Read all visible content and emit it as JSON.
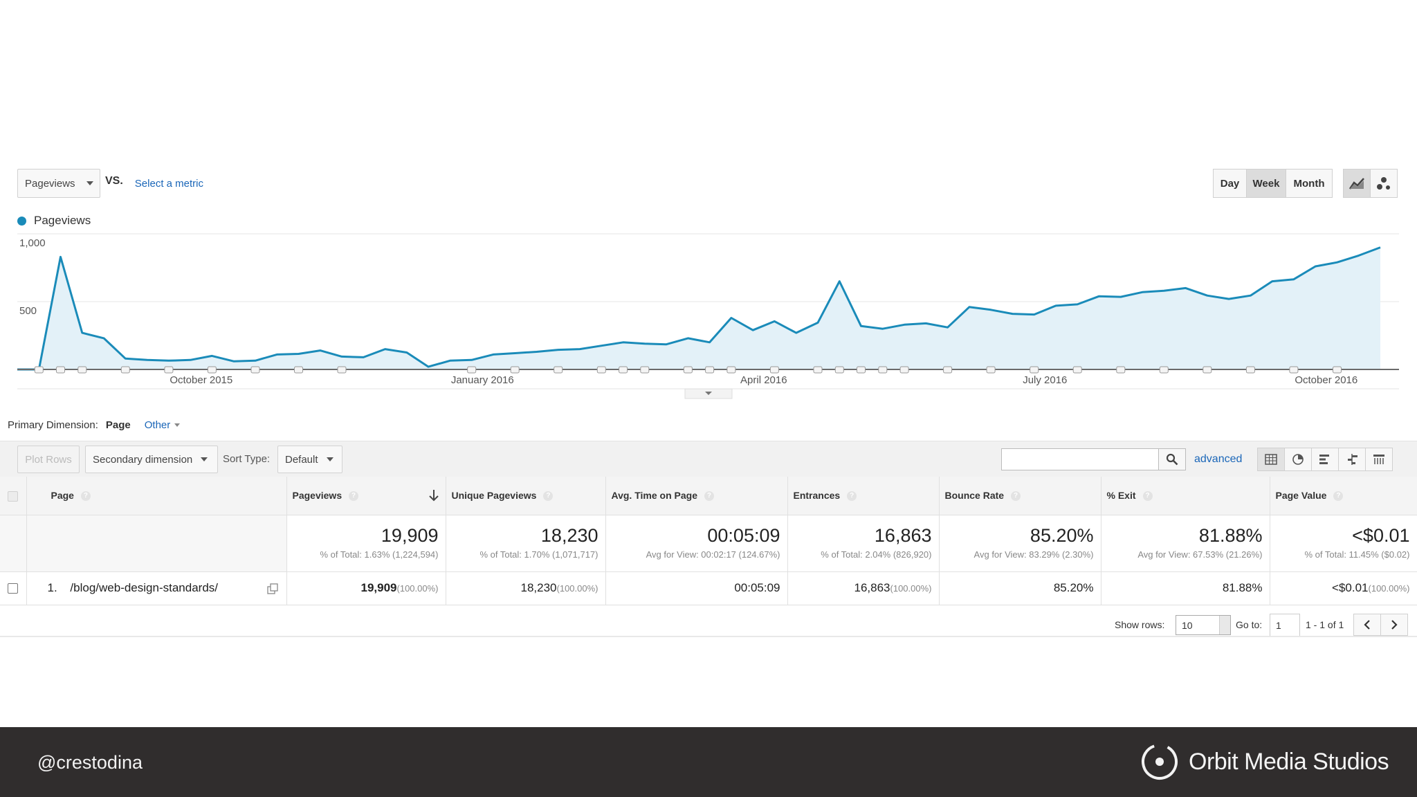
{
  "controls": {
    "metric": "Pageviews",
    "vs": "VS.",
    "select_metric": "Select a metric",
    "ranges": [
      "Day",
      "Week",
      "Month"
    ],
    "active_range": "Week"
  },
  "legend": {
    "label": "Pageviews",
    "color": "#1a8bb9"
  },
  "chart_data": {
    "type": "area",
    "title": "",
    "series": [
      {
        "name": "Pageviews",
        "values": [
          0,
          0,
          830,
          270,
          230,
          80,
          70,
          65,
          70,
          100,
          60,
          65,
          110,
          115,
          140,
          95,
          90,
          150,
          125,
          20,
          65,
          70,
          110,
          120,
          130,
          145,
          150,
          175,
          200,
          190,
          185,
          230,
          200,
          380,
          290,
          355,
          270,
          345,
          650,
          320,
          300,
          330,
          340,
          310,
          460,
          440,
          410,
          405,
          470,
          480,
          540,
          535,
          570,
          580,
          600,
          545,
          520,
          545,
          650,
          665,
          760,
          790,
          840,
          900
        ]
      }
    ],
    "yticks": [
      "1,000",
      "500"
    ],
    "ylim": [
      0,
      1000
    ],
    "xtick_labels": [
      "October 2015",
      "January 2016",
      "April 2016",
      "July 2016",
      "October 2016"
    ],
    "xtick_index": [
      8.5,
      21.5,
      34.5,
      47.5,
      60.5
    ]
  },
  "primary_dimension": {
    "label": "Primary Dimension:",
    "selected": "Page",
    "other": "Other"
  },
  "toolbar": {
    "plot_rows": "Plot Rows",
    "secondary_dimension": "Secondary dimension",
    "sort_type_label": "Sort Type:",
    "sort_type": "Default",
    "search_value": "",
    "advanced": "advanced"
  },
  "table": {
    "headers": [
      "Page",
      "Pageviews",
      "Unique Pageviews",
      "Avg. Time on Page",
      "Entrances",
      "Bounce Rate",
      "% Exit",
      "Page Value"
    ],
    "totals": [
      {
        "main": "19,909",
        "sub": "% of Total: 1.63% (1,224,594)"
      },
      {
        "main": "18,230",
        "sub": "% of Total: 1.70% (1,071,717)"
      },
      {
        "main": "00:05:09",
        "sub": "Avg for View: 00:02:17 (124.67%)"
      },
      {
        "main": "16,863",
        "sub": "% of Total: 2.04% (826,920)"
      },
      {
        "main": "85.20%",
        "sub": "Avg for View: 83.29% (2.30%)"
      },
      {
        "main": "81.88%",
        "sub": "Avg for View: 67.53% (21.26%)"
      },
      {
        "main": "<$0.01",
        "sub": "% of Total: 11.45% ($0.02)"
      }
    ],
    "row": {
      "index": "1.",
      "page": "/blog/web-design-standards/",
      "pageviews": "19,909",
      "pageviews_pct": "(100.00%)",
      "unique": "18,230",
      "unique_pct": "(100.00%)",
      "avg_time": "00:05:09",
      "entrances": "16,863",
      "entrances_pct": "(100.00%)",
      "bounce": "85.20%",
      "exit": "81.88%",
      "value": "<$0.01",
      "value_pct": "(100.00%)"
    }
  },
  "pagination": {
    "show_rows_label": "Show rows:",
    "show_rows": "10",
    "goto_label": "Go to:",
    "goto_value": "1",
    "range": "1 - 1 of 1"
  },
  "footer": {
    "handle": "@crestodina",
    "brand": "Orbit Media Studios"
  }
}
